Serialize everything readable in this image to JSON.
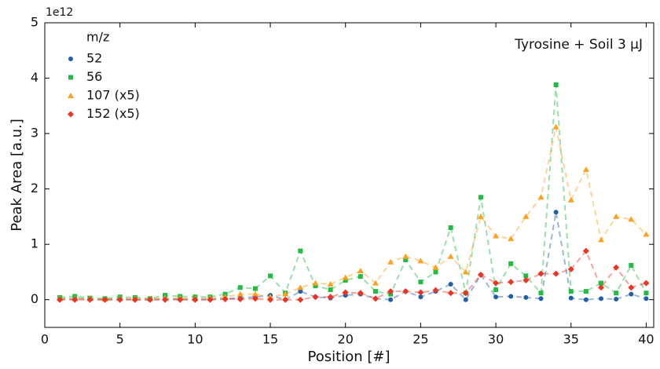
{
  "chart_data": {
    "type": "line",
    "y_offset_label": "1e12",
    "annotation": "Tyrosine + Soil 3 µJ",
    "legend_title": "m/z",
    "x_label": "Position [#]",
    "y_label": "Peak Area [a.u.]",
    "x": [
      1,
      2,
      3,
      4,
      5,
      6,
      7,
      8,
      9,
      10,
      11,
      12,
      13,
      14,
      15,
      16,
      17,
      18,
      19,
      20,
      21,
      22,
      23,
      24,
      25,
      26,
      27,
      28,
      29,
      30,
      31,
      32,
      33,
      34,
      35,
      36,
      37,
      38,
      39,
      40
    ],
    "series": [
      {
        "name": "52",
        "color": "#1f5fa8",
        "marker": "circle",
        "values": [
          0.01,
          0.02,
          0.01,
          0,
          0.01,
          0,
          0,
          0.01,
          0.01,
          0,
          0.01,
          0.02,
          0.03,
          0.05,
          0.08,
          0.0,
          0.15,
          0.05,
          0.03,
          0.08,
          0.1,
          0.02,
          0.0,
          0.15,
          0.05,
          0.15,
          0.28,
          0.0,
          0.45,
          0.05,
          0.06,
          0.04,
          0.02,
          1.58,
          0.03,
          0.0,
          0.02,
          0.01,
          0.1,
          0.02
        ]
      },
      {
        "name": "56",
        "color": "#22bb44",
        "marker": "square",
        "values": [
          0.04,
          0.06,
          0.03,
          0.02,
          0.05,
          0.04,
          0.02,
          0.08,
          0.06,
          0.05,
          0.05,
          0.1,
          0.22,
          0.2,
          0.43,
          0.12,
          0.88,
          0.25,
          0.18,
          0.35,
          0.42,
          0.15,
          0.1,
          0.72,
          0.32,
          0.5,
          1.3,
          0.12,
          1.85,
          0.18,
          0.65,
          0.43,
          0.12,
          3.88,
          0.15,
          0.15,
          0.3,
          0.12,
          0.62,
          0.12
        ]
      },
      {
        "name": "107 (x5)",
        "color": "#ffa020",
        "marker": "triangle",
        "values": [
          0.02,
          0.02,
          0.02,
          0.01,
          0.02,
          0.02,
          0.02,
          0.03,
          0.03,
          0.02,
          0.03,
          0.05,
          0.1,
          0.1,
          0.05,
          0.1,
          0.22,
          0.3,
          0.28,
          0.4,
          0.52,
          0.3,
          0.68,
          0.78,
          0.7,
          0.58,
          0.78,
          0.5,
          1.5,
          1.15,
          1.1,
          1.5,
          1.85,
          3.12,
          1.8,
          2.35,
          1.08,
          1.5,
          1.45,
          1.18
        ]
      },
      {
        "name": "152 (x5)",
        "color": "#ee3322",
        "marker": "diamond",
        "values": [
          0,
          0,
          0,
          0,
          0,
          0,
          0,
          0,
          0,
          0,
          0,
          0.01,
          0.01,
          0.02,
          0.0,
          0.0,
          0.0,
          0.05,
          0.05,
          0.13,
          0.12,
          0.02,
          0.15,
          0.15,
          0.13,
          0.17,
          0.12,
          0.12,
          0.45,
          0.3,
          0.32,
          0.35,
          0.47,
          0.47,
          0.55,
          0.88,
          0.22,
          0.58,
          0.22,
          0.3
        ]
      }
    ],
    "xlim": [
      0,
      40.5
    ],
    "ylim": [
      -0.5,
      5
    ],
    "xticks": [
      0,
      5,
      10,
      15,
      20,
      25,
      30,
      35,
      40
    ],
    "yticks": [
      0,
      1,
      2,
      3,
      4,
      5
    ],
    "legend_position": "upper left"
  }
}
